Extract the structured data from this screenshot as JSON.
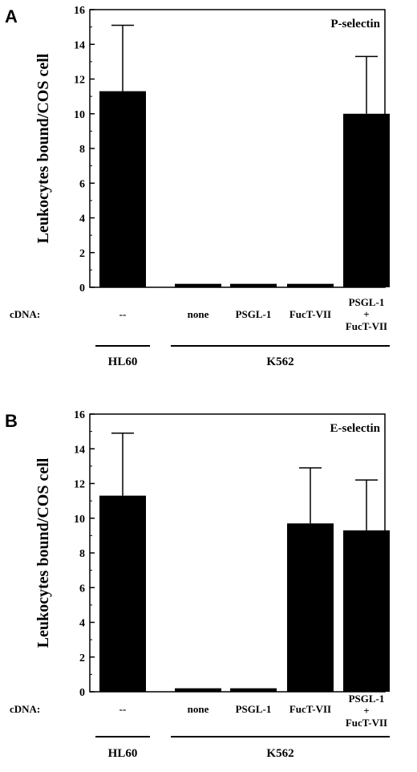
{
  "chart_data": [
    {
      "type": "bar",
      "panel": "A",
      "title": "P-selectin",
      "ylabel": "Leukocytes bound/COS cell",
      "ylim": [
        0,
        16
      ],
      "yticks": [
        0,
        2,
        4,
        6,
        8,
        10,
        12,
        14,
        16
      ],
      "row_label": "cDNA:",
      "categories": [
        [
          "--"
        ],
        [
          "none"
        ],
        [
          "PSGL-1"
        ],
        [
          "FucT-VII"
        ],
        [
          "PSGL-1",
          "+",
          "FucT-VII"
        ]
      ],
      "values": [
        11.3,
        0.2,
        0.2,
        0.2,
        10.0
      ],
      "errors": [
        3.8,
        0,
        0,
        0,
        3.3
      ],
      "groups": [
        {
          "label": "HL60",
          "from": 0,
          "to": 0
        },
        {
          "label": "K562",
          "from": 1,
          "to": 4
        }
      ]
    },
    {
      "type": "bar",
      "panel": "B",
      "title": "E-selectin",
      "ylabel": "Leukocytes bound/COS cell",
      "ylim": [
        0,
        16
      ],
      "yticks": [
        0,
        2,
        4,
        6,
        8,
        10,
        12,
        14,
        16
      ],
      "row_label": "cDNA:",
      "categories": [
        [
          "--"
        ],
        [
          "none"
        ],
        [
          "PSGL-1"
        ],
        [
          "FucT-VII"
        ],
        [
          "PSGL-1",
          "+",
          "FucT-VII"
        ]
      ],
      "values": [
        11.3,
        0.2,
        0.2,
        9.7,
        9.3
      ],
      "errors": [
        3.6,
        0,
        0,
        3.2,
        2.9
      ],
      "groups": [
        {
          "label": "HL60",
          "from": 0,
          "to": 0
        },
        {
          "label": "K562",
          "from": 1,
          "to": 4
        }
      ]
    }
  ]
}
